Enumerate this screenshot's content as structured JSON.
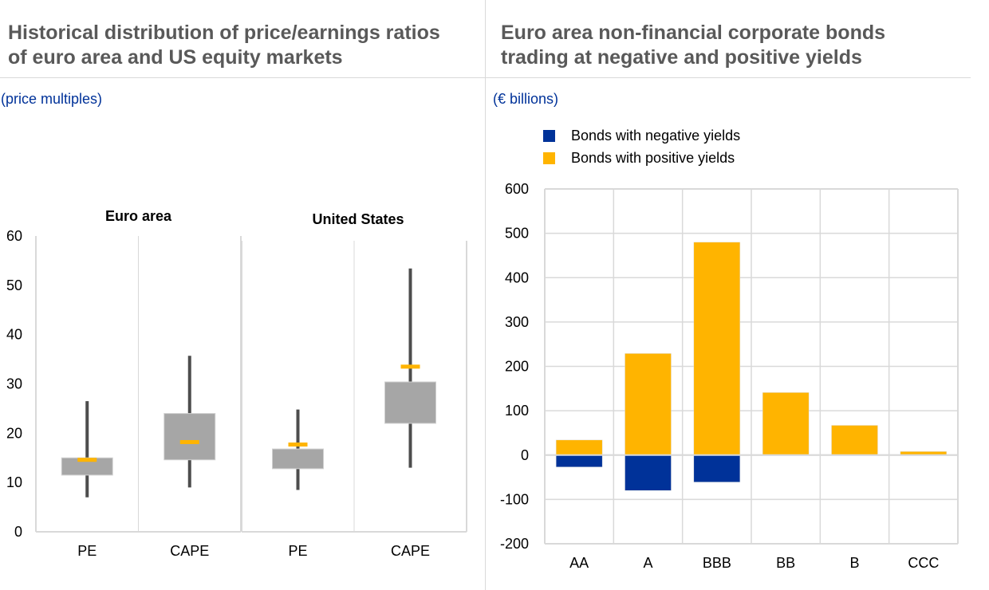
{
  "left_panel": {
    "title_line1": "Historical distribution of price/earnings ratios",
    "title_line2": "of euro area and US equity markets",
    "unit": "(price multiples)"
  },
  "right_panel": {
    "title_line1": "Euro area non-financial corporate bonds",
    "title_line2": "trading at negative and positive yields",
    "unit": "(€ billions)"
  },
  "colors": {
    "box": "#a6a6a6",
    "whisker": "#4d4d4d",
    "marker": "#ffb400",
    "negative": "#003299",
    "positive": "#ffb400",
    "grid": "#d9d9d9",
    "title": "#595959",
    "unit": "#003299"
  },
  "chart_data": [
    {
      "type": "boxplot",
      "title": "Historical distribution of price/earnings ratios of euro area and US equity markets",
      "ylabel": "(price multiples)",
      "ylim": [
        0,
        60
      ],
      "yticks": [
        "0",
        "10",
        "20",
        "30",
        "40",
        "50",
        "60"
      ],
      "grid": false,
      "groups": [
        {
          "name": "Euro area",
          "items": [
            {
              "label": "PE",
              "min": 7.0,
              "q1": 11.5,
              "q3": 15.0,
              "max": 26.5,
              "current": 14.6
            },
            {
              "label": "CAPE",
              "min": 9.0,
              "q1": 14.6,
              "q3": 24.0,
              "max": 35.7,
              "current": 18.2
            }
          ]
        },
        {
          "name": "United States",
          "items": [
            {
              "label": "PE",
              "min": 8.5,
              "q1": 12.8,
              "q3": 16.8,
              "max": 24.8,
              "current": 17.7
            },
            {
              "label": "CAPE",
              "min": 13.0,
              "q1": 22.0,
              "q3": 30.4,
              "max": 53.4,
              "current": 33.5
            }
          ]
        }
      ]
    },
    {
      "type": "bar",
      "stacked": true,
      "title": "Euro area non-financial corporate bonds trading at negative and positive yields",
      "ylabel": "(€ billions)",
      "xlabel": "",
      "ylim": [
        -200,
        600
      ],
      "yticks": [
        "-200",
        "-100",
        "0",
        "100",
        "200",
        "300",
        "400",
        "500",
        "600"
      ],
      "grid": true,
      "legend_position": "top-left",
      "categories": [
        "AA",
        "A",
        "BBB",
        "BB",
        "B",
        "CCC"
      ],
      "series": [
        {
          "name": "Bonds with negative yields",
          "color": "#003299",
          "values": [
            -27,
            -80,
            -61,
            0,
            0,
            0
          ]
        },
        {
          "name": "Bonds with positive yields",
          "color": "#ffb400",
          "values": [
            34,
            229,
            480,
            141,
            67,
            8
          ]
        }
      ]
    }
  ]
}
